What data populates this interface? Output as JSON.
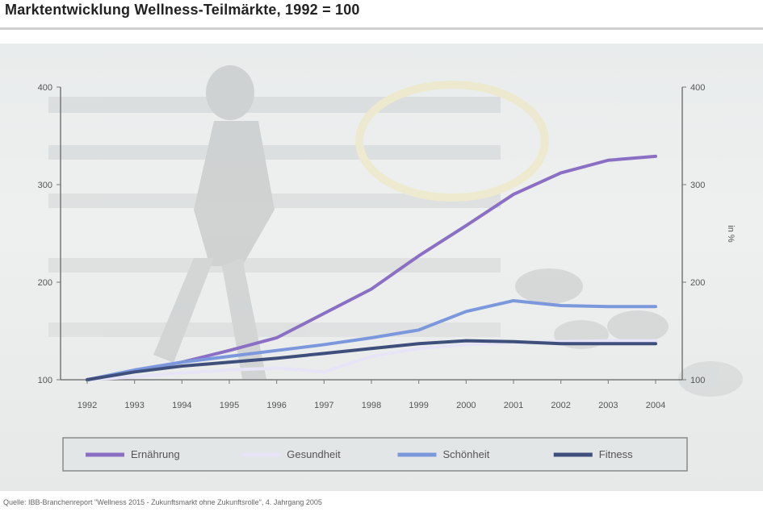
{
  "title": "Marktentwicklung Wellness-Teilmärkte, 1992 = 100",
  "source": "Quelle: IBB-Branchenreport \"Wellness 2015 - Zukunftsmarkt ohne Zukunftsrolle\", 4. Jahrgang 2005",
  "chart_data": {
    "type": "line",
    "title": "Marktentwicklung Wellness-Teilmärkte, 1992 = 100",
    "xlabel": "",
    "ylabel": "",
    "y2label": "in %",
    "categories": [
      "1992",
      "1993",
      "1994",
      "1995",
      "1996",
      "1997",
      "1998",
      "1999",
      "2000",
      "2001",
      "2002",
      "2003",
      "2004"
    ],
    "ylim": [
      100,
      400
    ],
    "yticks": [
      100,
      200,
      300,
      400
    ],
    "legend_position": "bottom",
    "grid": false,
    "series": [
      {
        "name": "Ernährung",
        "color": "#8a6fc4",
        "values": [
          100,
          109,
          118,
          130,
          143,
          168,
          193,
          227,
          258,
          290,
          312,
          325,
          329
        ]
      },
      {
        "name": "Gesundheit",
        "color": "#e6e4f6",
        "values": [
          100,
          103,
          107,
          110,
          112,
          108,
          124,
          132,
          136,
          138,
          139,
          140,
          140
        ]
      },
      {
        "name": "Schönheit",
        "color": "#7c98dd",
        "values": [
          100,
          110,
          118,
          124,
          130,
          136,
          143,
          151,
          170,
          181,
          176,
          175,
          175
        ]
      },
      {
        "name": "Fitness",
        "color": "#3f4f7c",
        "values": [
          100,
          108,
          114,
          118,
          122,
          127,
          132,
          137,
          140,
          139,
          137,
          137,
          137
        ]
      }
    ]
  }
}
